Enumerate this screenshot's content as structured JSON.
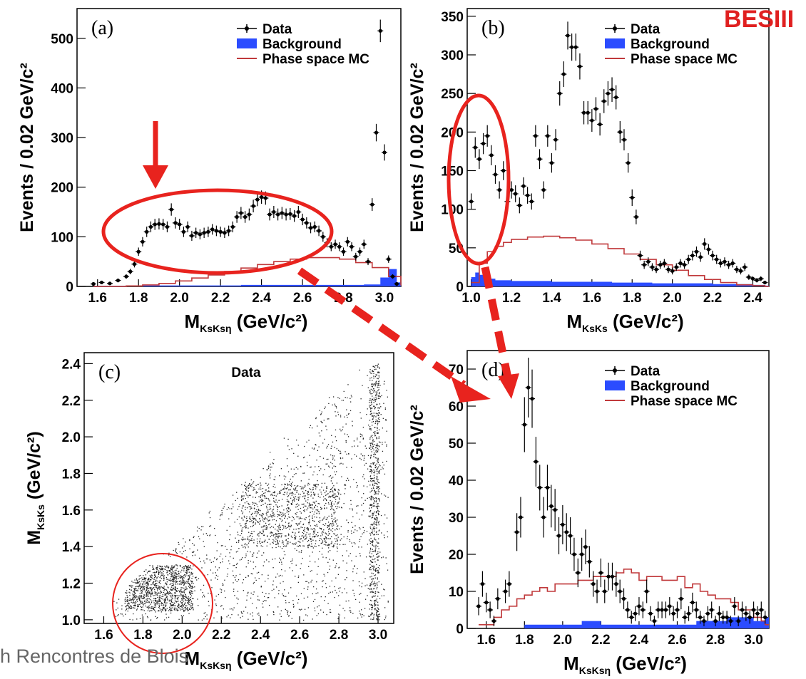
{
  "logo": {
    "text": "BESIII",
    "color_main": "#e02020",
    "color_accent": "#1a1a1a"
  },
  "footer_text": "h Rencontres de Blois",
  "colors": {
    "data": "#000000",
    "background": "#2b4cff",
    "phase_space": "#c0393b",
    "highlight": "#e8231e"
  },
  "legend": {
    "data": "Data",
    "background": "Background",
    "phase_space": "Phase space MC"
  },
  "chart_data": [
    {
      "id": "a",
      "type": "histogram",
      "panel_label": "(a)",
      "ylabel": "Events / 0.02 GeV/c²",
      "xlabel": "(GeV/c²)",
      "xlabel_symbol": "M",
      "xlabel_sub": "KsKsη",
      "xlim": [
        1.5,
        3.08
      ],
      "ylim": [
        0,
        560
      ],
      "xticks": [
        "1.6",
        "1.8",
        "2.0",
        "2.2",
        "2.4",
        "2.6",
        "2.8",
        "3.0"
      ],
      "yticks": [
        "0",
        "100",
        "200",
        "300",
        "400",
        "500"
      ],
      "series": [
        {
          "name": "Data",
          "kind": "points",
          "x": [
            1.58,
            1.62,
            1.66,
            1.7,
            1.74,
            1.76,
            1.78,
            1.8,
            1.82,
            1.84,
            1.86,
            1.88,
            1.9,
            1.92,
            1.94,
            1.96,
            1.98,
            2.0,
            2.02,
            2.04,
            2.06,
            2.08,
            2.1,
            2.12,
            2.14,
            2.16,
            2.18,
            2.2,
            2.22,
            2.24,
            2.26,
            2.28,
            2.3,
            2.32,
            2.34,
            2.36,
            2.38,
            2.4,
            2.42,
            2.44,
            2.46,
            2.48,
            2.5,
            2.52,
            2.54,
            2.56,
            2.58,
            2.6,
            2.62,
            2.64,
            2.66,
            2.68,
            2.7,
            2.72,
            2.74,
            2.76,
            2.78,
            2.8,
            2.82,
            2.84,
            2.86,
            2.88,
            2.9,
            2.92,
            2.94,
            2.96,
            2.98,
            3.0,
            3.02,
            3.04,
            3.06
          ],
          "y": [
            5,
            8,
            6,
            12,
            20,
            30,
            45,
            70,
            90,
            110,
            120,
            125,
            126,
            125,
            120,
            155,
            128,
            125,
            110,
            120,
            102,
            108,
            105,
            108,
            110,
            115,
            112,
            110,
            108,
            112,
            120,
            140,
            148,
            140,
            145,
            162,
            175,
            180,
            178,
            145,
            150,
            145,
            148,
            145,
            146,
            142,
            150,
            135,
            128,
            118,
            120,
            112,
            100,
            88,
            80,
            85,
            80,
            70,
            90,
            80,
            60,
            70,
            85,
            50,
            165,
            310,
            515,
            270,
            55,
            20,
            5
          ]
        },
        {
          "name": "Phase space MC",
          "kind": "step",
          "x": [
            1.58,
            1.66,
            1.74,
            1.82,
            1.9,
            1.98,
            2.06,
            2.14,
            2.22,
            2.3,
            2.38,
            2.46,
            2.54,
            2.62,
            2.7,
            2.78,
            2.86,
            2.94,
            3.02,
            3.08
          ],
          "y": [
            0,
            0,
            1,
            3,
            6,
            11,
            17,
            23,
            30,
            37,
            44,
            50,
            55,
            58,
            58,
            55,
            48,
            38,
            20,
            2
          ]
        },
        {
          "name": "Background",
          "kind": "fill",
          "x": [
            1.58,
            1.7,
            1.82,
            1.94,
            2.06,
            2.18,
            2.3,
            2.42,
            2.54,
            2.66,
            2.78,
            2.9,
            2.98,
            3.02,
            3.06
          ],
          "y": [
            1,
            1,
            2,
            2,
            2,
            2,
            3,
            3,
            3,
            3,
            3,
            4,
            18,
            35,
            8
          ]
        }
      ]
    },
    {
      "id": "b",
      "type": "histogram",
      "panel_label": "(b)",
      "ylabel": "Events / 0.02 GeV/c²",
      "xlabel": "(GeV/c²)",
      "xlabel_symbol": "M",
      "xlabel_sub": "KsKs",
      "xlim": [
        0.98,
        2.48
      ],
      "ylim": [
        0,
        360
      ],
      "xticks": [
        "1.0",
        "1.2",
        "1.4",
        "1.6",
        "1.8",
        "2.0",
        "2.2",
        "2.4"
      ],
      "yticks": [
        "0",
        "50",
        "100",
        "150",
        "200",
        "250",
        "300",
        "350"
      ],
      "series": [
        {
          "name": "Data",
          "kind": "points",
          "x": [
            1.0,
            1.02,
            1.04,
            1.06,
            1.08,
            1.1,
            1.12,
            1.14,
            1.16,
            1.18,
            1.2,
            1.22,
            1.24,
            1.26,
            1.28,
            1.3,
            1.32,
            1.34,
            1.36,
            1.38,
            1.4,
            1.42,
            1.44,
            1.46,
            1.48,
            1.5,
            1.52,
            1.54,
            1.56,
            1.58,
            1.6,
            1.62,
            1.64,
            1.66,
            1.68,
            1.7,
            1.72,
            1.74,
            1.76,
            1.78,
            1.8,
            1.82,
            1.84,
            1.86,
            1.88,
            1.9,
            1.92,
            1.94,
            1.96,
            1.98,
            2.0,
            2.02,
            2.04,
            2.06,
            2.08,
            2.1,
            2.12,
            2.14,
            2.16,
            2.18,
            2.2,
            2.22,
            2.24,
            2.26,
            2.28,
            2.3,
            2.32,
            2.34,
            2.36,
            2.38,
            2.4,
            2.42,
            2.44,
            2.46
          ],
          "y": [
            110,
            180,
            165,
            185,
            195,
            170,
            145,
            125,
            150,
            110,
            125,
            120,
            105,
            130,
            118,
            110,
            195,
            165,
            125,
            195,
            160,
            190,
            250,
            275,
            325,
            310,
            310,
            285,
            225,
            225,
            215,
            230,
            210,
            240,
            250,
            255,
            245,
            200,
            190,
            160,
            115,
            90,
            40,
            28,
            32,
            25,
            22,
            28,
            30,
            22,
            20,
            25,
            30,
            28,
            35,
            40,
            45,
            38,
            55,
            48,
            40,
            35,
            30,
            32,
            28,
            30,
            22,
            20,
            25,
            12,
            10,
            8,
            10,
            5
          ]
        },
        {
          "name": "Phase space MC",
          "kind": "step",
          "x": [
            1.0,
            1.04,
            1.08,
            1.12,
            1.16,
            1.2,
            1.28,
            1.36,
            1.44,
            1.52,
            1.6,
            1.68,
            1.76,
            1.84,
            1.92,
            2.0,
            2.08,
            2.16,
            2.24,
            2.32,
            2.4,
            2.46
          ],
          "y": [
            5,
            30,
            45,
            52,
            57,
            61,
            64,
            65,
            63,
            60,
            55,
            49,
            42,
            35,
            28,
            21,
            14,
            9,
            5,
            2,
            1,
            0
          ]
        },
        {
          "name": "Background",
          "kind": "fill",
          "x": [
            1.0,
            1.02,
            1.04,
            1.06,
            1.08,
            1.12,
            1.2,
            1.3,
            1.4,
            1.5,
            1.6,
            1.7,
            1.8,
            1.9,
            2.0,
            2.1,
            2.2,
            2.3,
            2.4,
            2.46
          ],
          "y": [
            12,
            18,
            15,
            12,
            10,
            8,
            7,
            7,
            6,
            6,
            6,
            5,
            5,
            4,
            4,
            4,
            3,
            3,
            2,
            1
          ]
        }
      ]
    },
    {
      "id": "c",
      "type": "scatter",
      "panel_label": "(c)",
      "title": "Data",
      "ylabel": "(GeV/c²)",
      "ylabel_symbol": "M",
      "ylabel_sub": "KsKs",
      "xlabel": "(GeV/c²)",
      "xlabel_symbol": "M",
      "xlabel_sub": "KsKsη",
      "xlim": [
        1.5,
        3.08
      ],
      "ylim": [
        0.98,
        2.46
      ],
      "xticks": [
        "1.6",
        "1.8",
        "2.0",
        "2.2",
        "2.4",
        "2.6",
        "2.8",
        "3.0"
      ],
      "yticks": [
        "1.0",
        "1.2",
        "1.4",
        "1.6",
        "1.8",
        "2.0",
        "2.2",
        "2.4"
      ],
      "density_regions": [
        {
          "x": 1.88,
          "y": 1.08,
          "weight": 0.32
        },
        {
          "x": 2.45,
          "y": 1.55,
          "weight": 0.18
        },
        {
          "x": 2.98,
          "y": 1.55,
          "weight": 0.16
        }
      ]
    },
    {
      "id": "d",
      "type": "histogram",
      "panel_label": "(d)",
      "ylabel": "Events / 0.02 GeV/c²",
      "xlabel": "(GeV/c²)",
      "xlabel_symbol": "M",
      "xlabel_sub": "KsKsη",
      "xlim": [
        1.5,
        3.08
      ],
      "ylim": [
        0,
        75
      ],
      "xticks": [
        "1.6",
        "1.8",
        "2.0",
        "2.2",
        "2.4",
        "2.6",
        "2.8",
        "3.0"
      ],
      "yticks": [
        "0",
        "10",
        "20",
        "30",
        "40",
        "50",
        "60",
        "70"
      ],
      "series": [
        {
          "name": "Data",
          "kind": "points",
          "x": [
            1.56,
            1.58,
            1.6,
            1.62,
            1.64,
            1.66,
            1.7,
            1.72,
            1.76,
            1.78,
            1.8,
            1.82,
            1.84,
            1.86,
            1.88,
            1.9,
            1.92,
            1.94,
            1.96,
            1.98,
            2.0,
            2.02,
            2.04,
            2.06,
            2.08,
            2.1,
            2.12,
            2.14,
            2.16,
            2.18,
            2.2,
            2.22,
            2.24,
            2.26,
            2.28,
            2.3,
            2.32,
            2.34,
            2.36,
            2.38,
            2.4,
            2.42,
            2.44,
            2.46,
            2.48,
            2.5,
            2.52,
            2.54,
            2.56,
            2.58,
            2.6,
            2.62,
            2.64,
            2.66,
            2.68,
            2.7,
            2.72,
            2.74,
            2.76,
            2.78,
            2.8,
            2.82,
            2.84,
            2.86,
            2.88,
            2.9,
            2.92,
            2.94,
            2.96,
            2.98,
            3.0,
            3.02,
            3.04,
            3.06
          ],
          "y": [
            6,
            12,
            7,
            5,
            2,
            8,
            10,
            12,
            26,
            30,
            55,
            65,
            62,
            45,
            38,
            30,
            38,
            33,
            32,
            25,
            28,
            26,
            25,
            20,
            15,
            20,
            22,
            18,
            12,
            10,
            15,
            10,
            14,
            14,
            12,
            10,
            8,
            5,
            3,
            4,
            6,
            5,
            10,
            4,
            2,
            5,
            5,
            5,
            6,
            4,
            5,
            8,
            3,
            4,
            7,
            5,
            3,
            2,
            4,
            5,
            2,
            4,
            3,
            3,
            2,
            6,
            2,
            5,
            4,
            3,
            5,
            4,
            5,
            3
          ]
        },
        {
          "name": "Phase space MC",
          "kind": "step",
          "x": [
            1.56,
            1.6,
            1.64,
            1.68,
            1.72,
            1.76,
            1.8,
            1.84,
            1.88,
            1.92,
            1.96,
            2.0,
            2.04,
            2.08,
            2.12,
            2.16,
            2.2,
            2.24,
            2.28,
            2.32,
            2.36,
            2.4,
            2.44,
            2.48,
            2.52,
            2.56,
            2.6,
            2.64,
            2.68,
            2.72,
            2.76,
            2.8,
            2.84,
            2.88,
            2.92,
            2.96,
            3.0,
            3.04,
            3.06
          ],
          "y": [
            1,
            1,
            3,
            5,
            6,
            8,
            9,
            10,
            11,
            10,
            12,
            12,
            12,
            13,
            13,
            14,
            14,
            14,
            15,
            16,
            15,
            13,
            14,
            14,
            13,
            13,
            14,
            11,
            12,
            10,
            9,
            8,
            8,
            7,
            5,
            5,
            3,
            2,
            1
          ]
        },
        {
          "name": "Background",
          "kind": "fill",
          "x": [
            1.56,
            1.68,
            1.8,
            1.92,
            2.04,
            2.1,
            2.2,
            2.3,
            2.4,
            2.5,
            2.6,
            2.7,
            2.8,
            2.86,
            2.92,
            3.0,
            3.06
          ],
          "y": [
            0,
            0,
            1,
            1,
            1,
            2,
            1,
            1,
            1,
            1,
            1,
            2,
            2,
            3,
            3,
            2,
            3
          ]
        }
      ]
    }
  ]
}
